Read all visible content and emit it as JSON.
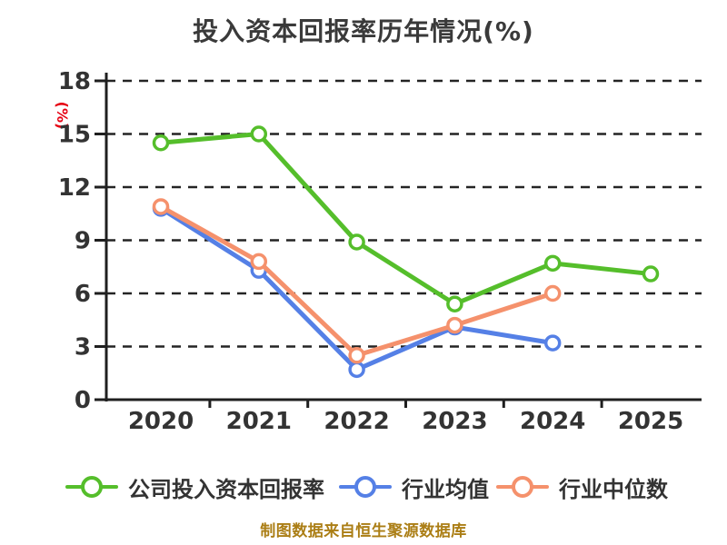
{
  "title": "投入资本回报率历年情况(%)",
  "y_axis_unit": "(%)",
  "footer": "制图数据来自恒生聚源数据库",
  "colors": {
    "background": "#ffffff",
    "title": "#3a3a3a",
    "text": "#333333",
    "axis": "#1f1f1f",
    "gridline": "#242424",
    "unit_label": "#e60012",
    "footer": "#ab7e15",
    "marker_fill": "#ffffff"
  },
  "chart_data": {
    "type": "line",
    "title": "投入资本回报率历年情况(%)",
    "ylabel": "(%)",
    "xlabel": "",
    "categories": [
      "2020",
      "2021",
      "2022",
      "2023",
      "2024",
      "2025"
    ],
    "series": [
      {
        "name": "公司投入资本回报率",
        "color": "#55be2b",
        "values": [
          14.5,
          15.0,
          8.9,
          5.4,
          7.7,
          7.1
        ]
      },
      {
        "name": "行业均值",
        "color": "#5580e6",
        "values": [
          10.8,
          7.3,
          1.7,
          4.1,
          3.2,
          null
        ]
      },
      {
        "name": "行业中位数",
        "color": "#f5916c",
        "values": [
          10.9,
          7.8,
          2.5,
          4.2,
          6.0,
          null
        ]
      }
    ],
    "ylim": [
      0,
      18
    ],
    "yticks": [
      0,
      3,
      6,
      9,
      12,
      15,
      18
    ],
    "grid": "horizontal-dashed",
    "legend_position": "bottom",
    "marker": "circle-white-fill"
  }
}
